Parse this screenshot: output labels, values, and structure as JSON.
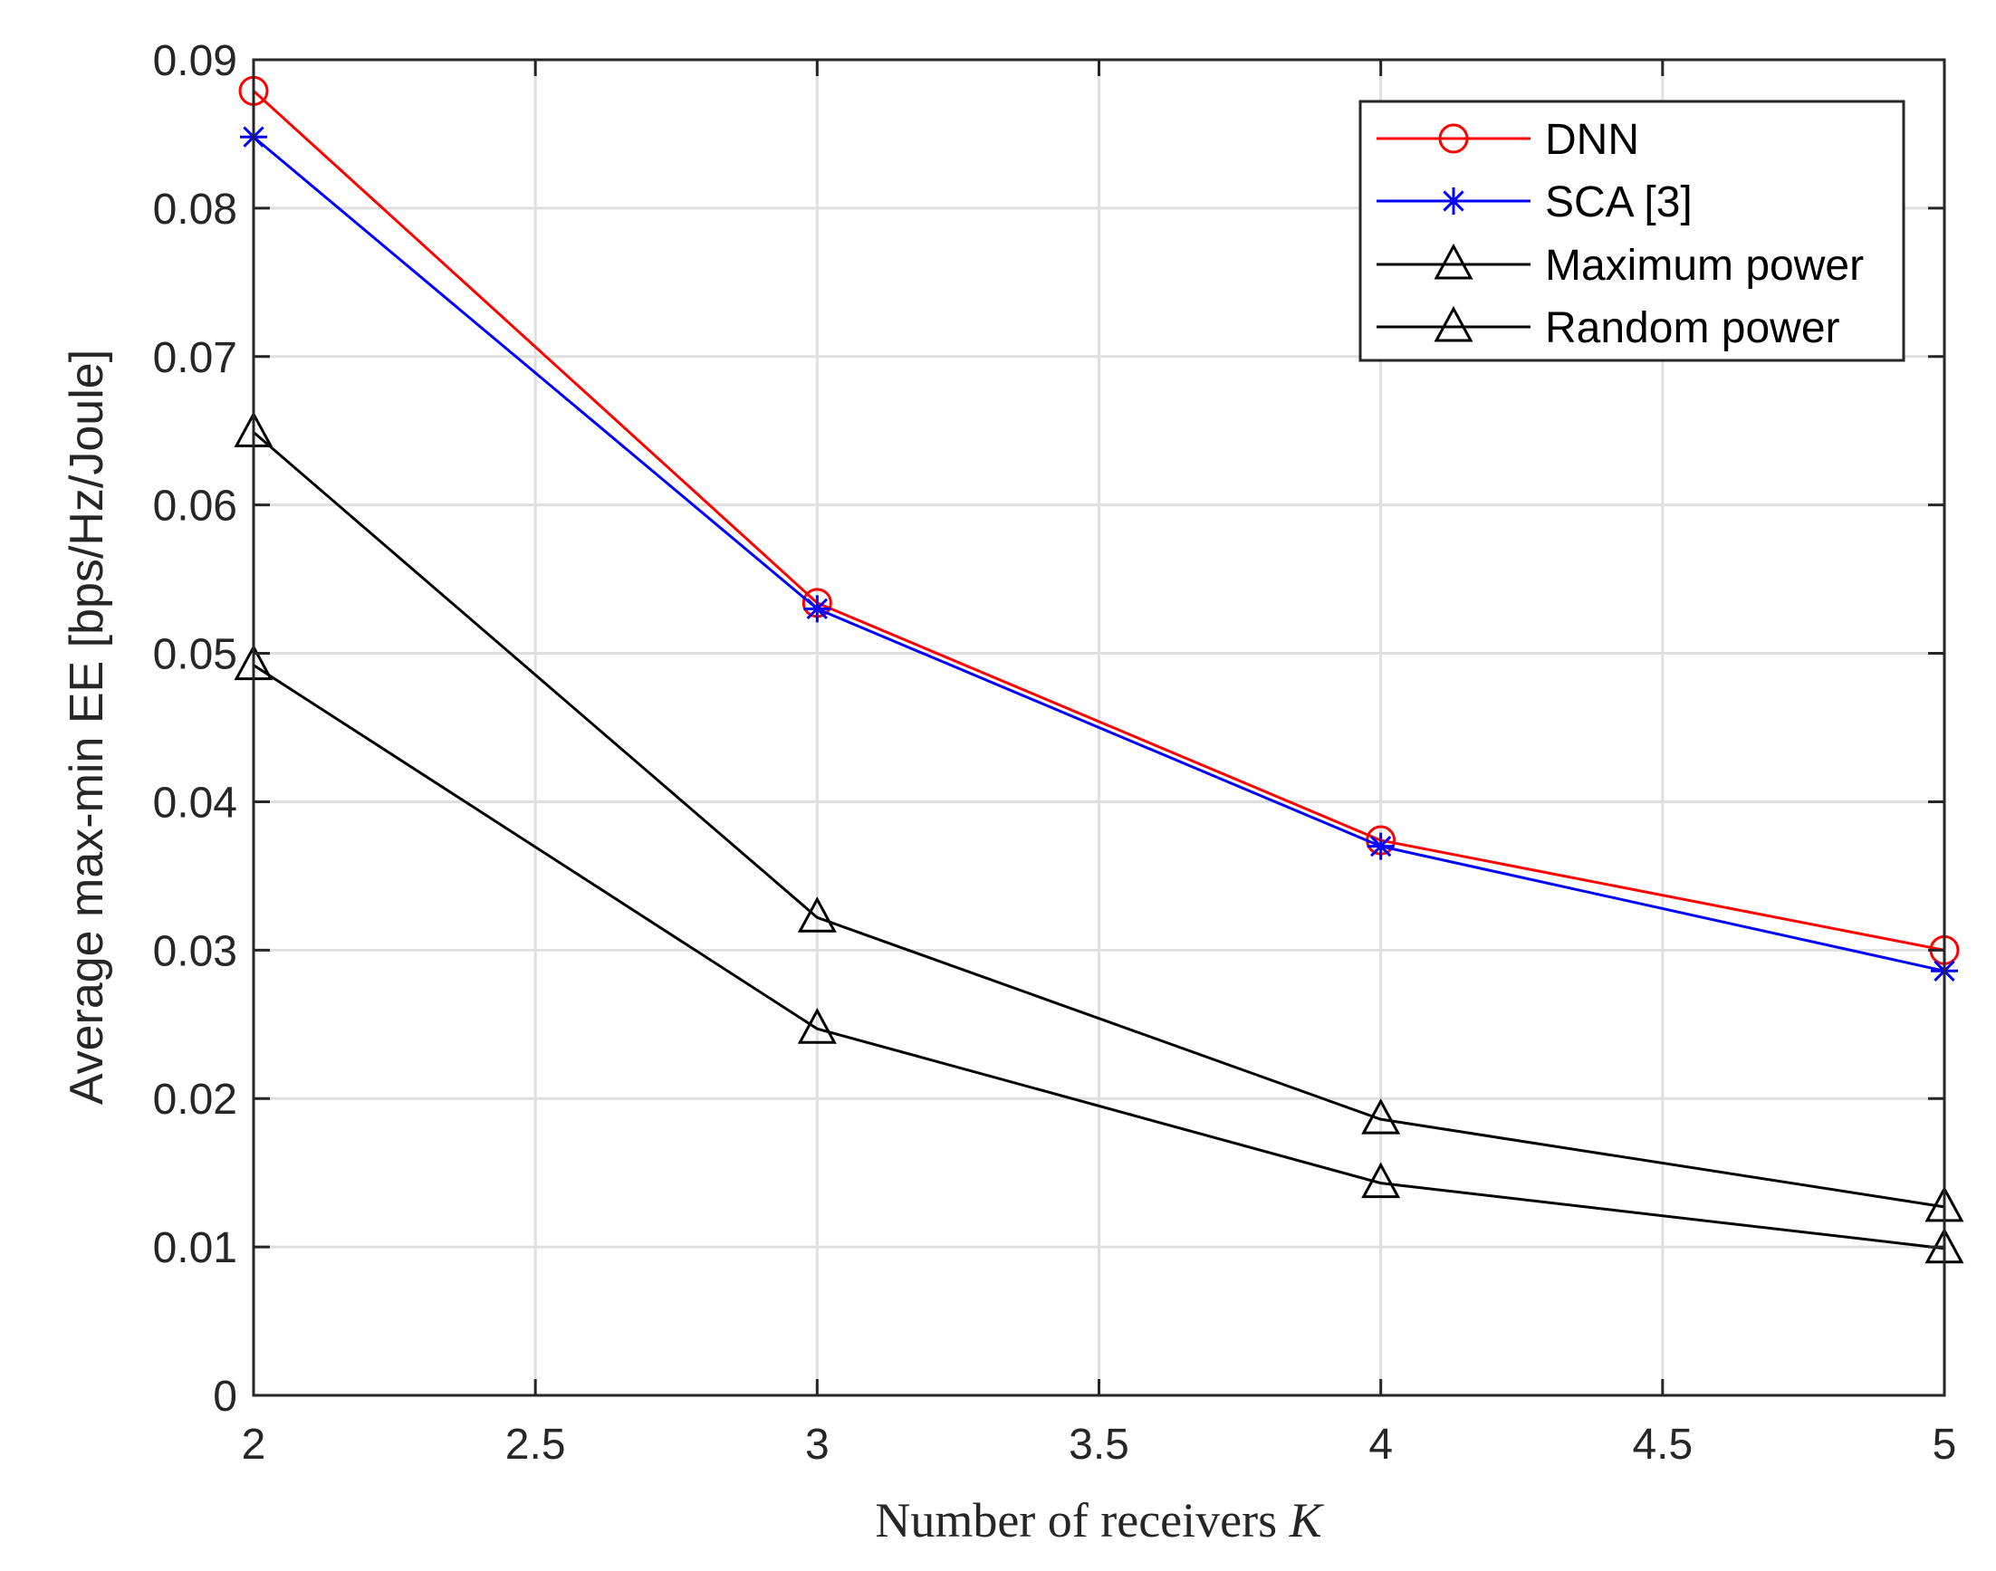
{
  "chart_data": {
    "type": "line",
    "title": "",
    "xlabel": "Number of receivers",
    "xlabel_var": "K",
    "ylabel": "Average max-min EE [bps/Hz/Joule]",
    "x": [
      2,
      3,
      4,
      5
    ],
    "xlim": [
      2,
      5
    ],
    "ylim": [
      0,
      0.09
    ],
    "xticks": [
      2,
      2.5,
      3,
      3.5,
      4,
      4.5,
      5
    ],
    "xtick_labels": [
      "2",
      "2.5",
      "3",
      "3.5",
      "4",
      "4.5",
      "5"
    ],
    "yticks": [
      0,
      0.01,
      0.02,
      0.03,
      0.04,
      0.05,
      0.06,
      0.07,
      0.08,
      0.09
    ],
    "ytick_labels": [
      "0",
      "0.01",
      "0.02",
      "0.03",
      "0.04",
      "0.05",
      "0.06",
      "0.07",
      "0.08",
      "0.09"
    ],
    "grid": true,
    "legend_position": "top-right",
    "series": [
      {
        "name": "DNN",
        "color": "#ff0000",
        "marker": "circle",
        "values": [
          0.0879,
          0.0534,
          0.0374,
          0.03
        ]
      },
      {
        "name": "SCA [3]",
        "color": "#0000ff",
        "marker": "asterisk",
        "values": [
          0.0848,
          0.053,
          0.037,
          0.0286
        ]
      },
      {
        "name": "Maximum power",
        "color": "#000000",
        "marker": "triangle",
        "values": [
          0.0649,
          0.0322,
          0.0186,
          0.0127
        ]
      },
      {
        "name": "Random power",
        "color": "#000000",
        "marker": "triangle",
        "values": [
          0.0492,
          0.0247,
          0.0143,
          0.0099
        ]
      }
    ]
  }
}
